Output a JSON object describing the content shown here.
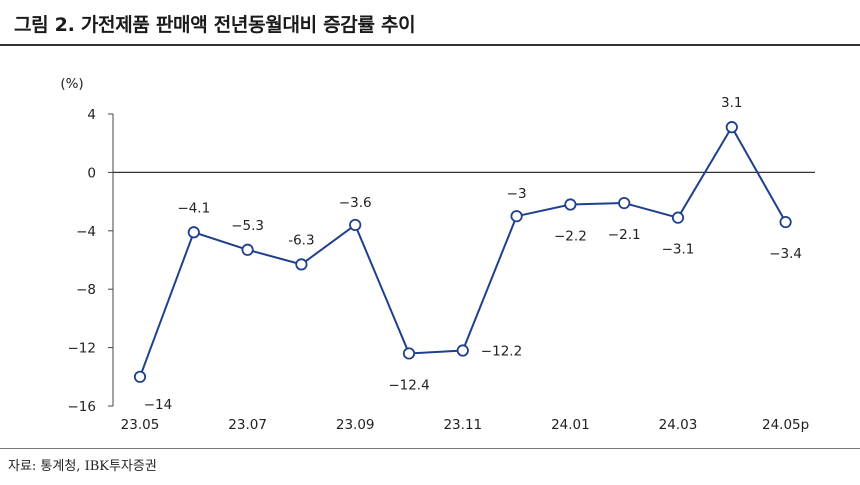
{
  "title": "그림 2. 가전제품 판매액 전년동월대비 증감률 추이",
  "source": "자료: 통계청, IBK투자증권",
  "chart_data": {
    "type": "line",
    "unit_label": "(%)",
    "x": [
      "23.05",
      "23.06",
      "23.07",
      "23.08",
      "23.09",
      "23.10",
      "23.11",
      "23.12",
      "24.01",
      "24.02",
      "24.03",
      "24.04",
      "24.05p"
    ],
    "x_tick_labels": [
      "23.05",
      "",
      "23.07",
      "",
      "23.09",
      "",
      "23.11",
      "",
      "24.01",
      "",
      "24.03",
      "",
      "24.05p"
    ],
    "values": [
      -14,
      -4.1,
      -5.3,
      -6.3,
      -3.6,
      -12.4,
      -12.2,
      -3,
      -2.2,
      -2.1,
      -3.1,
      3.1,
      -3.4
    ],
    "data_labels": [
      "−14",
      "−4.1",
      "−5.3",
      "-6.3",
      "−3.6",
      "−12.4",
      "−12.2",
      "−3",
      "−2.2",
      "−2.1",
      "−3.1",
      "3.1",
      "−3.4"
    ],
    "y_ticks": [
      4,
      0,
      -4,
      -8,
      -12,
      -16
    ],
    "y_tick_labels": [
      "4",
      "0",
      "−4",
      "−8",
      "−12",
      "−16"
    ],
    "ylim": [
      -16,
      4
    ],
    "line_color": "#1f3f8f",
    "marker_fill": "#ffffff"
  }
}
